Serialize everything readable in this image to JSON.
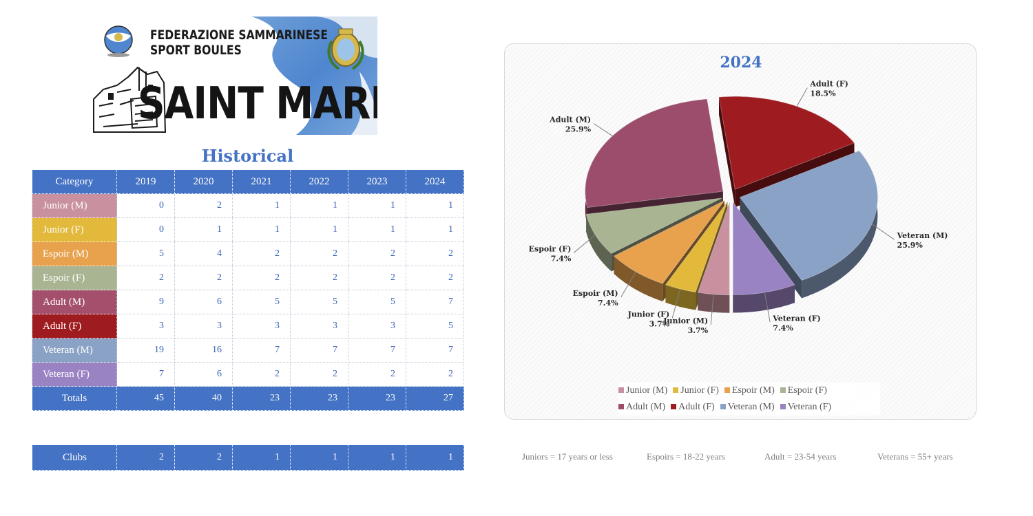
{
  "logo": {
    "federation_line1": "FEDERAZIONE SAMMARINESE",
    "federation_line2": "SPORT BOULES",
    "city": "SAINT MARIN"
  },
  "table": {
    "title": "Historical",
    "category_header": "Category",
    "years": [
      "2019",
      "2020",
      "2021",
      "2022",
      "2023",
      "2024"
    ],
    "rows": [
      {
        "label": "Junior (M)",
        "color": "#c9919f",
        "values": [
          "0",
          "2",
          "1",
          "1",
          "1",
          "1"
        ]
      },
      {
        "label": "Junior (F)",
        "color": "#e2b93b",
        "values": [
          "0",
          "1",
          "1",
          "1",
          "1",
          "1"
        ]
      },
      {
        "label": "Espoir (M)",
        "color": "#e8a24e",
        "values": [
          "5",
          "4",
          "2",
          "2",
          "2",
          "2"
        ]
      },
      {
        "label": "Espoir (F)",
        "color": "#a9b493",
        "values": [
          "2",
          "2",
          "2",
          "2",
          "2",
          "2"
        ]
      },
      {
        "label": "Adult (M)",
        "color": "#a4506c",
        "values": [
          "9",
          "6",
          "5",
          "5",
          "5",
          "7"
        ]
      },
      {
        "label": "Adult (F)",
        "color": "#9e1c1f",
        "values": [
          "3",
          "3",
          "3",
          "3",
          "3",
          "5"
        ]
      },
      {
        "label": "Veteran (M)",
        "color": "#8aa2c6",
        "values": [
          "19",
          "16",
          "7",
          "7",
          "7",
          "7"
        ]
      },
      {
        "label": "Veteran (F)",
        "color": "#9a83c3",
        "values": [
          "7",
          "6",
          "2",
          "2",
          "2",
          "2"
        ]
      }
    ],
    "totals_label": "Totals",
    "totals": [
      "45",
      "40",
      "23",
      "23",
      "23",
      "27"
    ],
    "clubs_label": "Clubs",
    "clubs": [
      "2",
      "2",
      "1",
      "1",
      "1",
      "1"
    ],
    "header_color": "#4472c4"
  },
  "chart_data": {
    "type": "pie",
    "title": "2024",
    "slices": [
      {
        "label": "Junior (M)",
        "value": 1,
        "percent": "3.7%",
        "color": "#c9919f"
      },
      {
        "label": "Junior (F)",
        "value": 1,
        "percent": "3.7%",
        "color": "#e2b93b"
      },
      {
        "label": "Espoir (M)",
        "value": 2,
        "percent": "7.4%",
        "color": "#e8a24e"
      },
      {
        "label": "Espoir (F)",
        "value": 2,
        "percent": "7.4%",
        "color": "#a9b493"
      },
      {
        "label": "Adult (M)",
        "value": 7,
        "percent": "25.9%",
        "color": "#9c4d6c"
      },
      {
        "label": "Adult (F)",
        "value": 5,
        "percent": "18.5%",
        "color": "#9e1c1f"
      },
      {
        "label": "Veteran (M)",
        "value": 7,
        "percent": "25.9%",
        "color": "#8aa2c6"
      },
      {
        "label": "Veteran (F)",
        "value": 2,
        "percent": "7.4%",
        "color": "#9a83c3"
      }
    ],
    "legend_position": "bottom",
    "style": "exploded 3D pie"
  },
  "notes": [
    "Juniors = 17 years or less",
    "Espoirs = 18-22 years",
    "Adult = 23-54 years",
    "Veterans = 55+ years"
  ]
}
